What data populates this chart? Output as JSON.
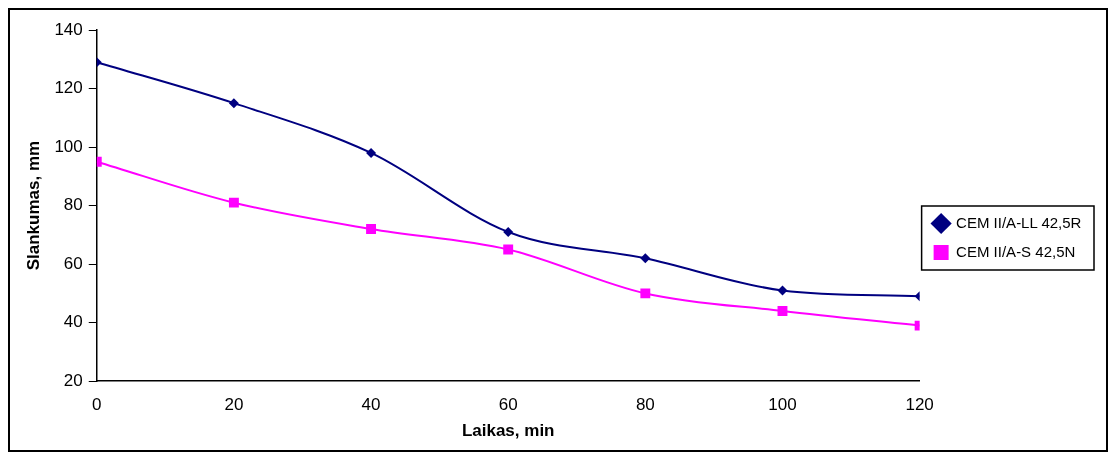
{
  "chart_data": {
    "type": "line",
    "xlabel": "Laikas, min",
    "ylabel": "Slankumas, mm",
    "x": [
      0,
      20,
      40,
      60,
      80,
      100,
      120
    ],
    "series": [
      {
        "name": "CEM II/A-LL 42,5R",
        "color": "#000080",
        "marker": "diamond",
        "values": [
          129,
          115,
          98,
          71,
          62,
          51,
          49
        ]
      },
      {
        "name": "CEM II/A-S 42,5N",
        "color": "#ff00ff",
        "marker": "square",
        "values": [
          95,
          81,
          72,
          65,
          50,
          44,
          39
        ]
      }
    ],
    "xlim": [
      0,
      120
    ],
    "xticks": [
      0,
      20,
      40,
      60,
      80,
      100,
      120
    ],
    "ylim": [
      20,
      140
    ],
    "yticks": [
      20,
      40,
      60,
      80,
      100,
      120,
      140
    ],
    "grid": false,
    "legend": "right"
  }
}
